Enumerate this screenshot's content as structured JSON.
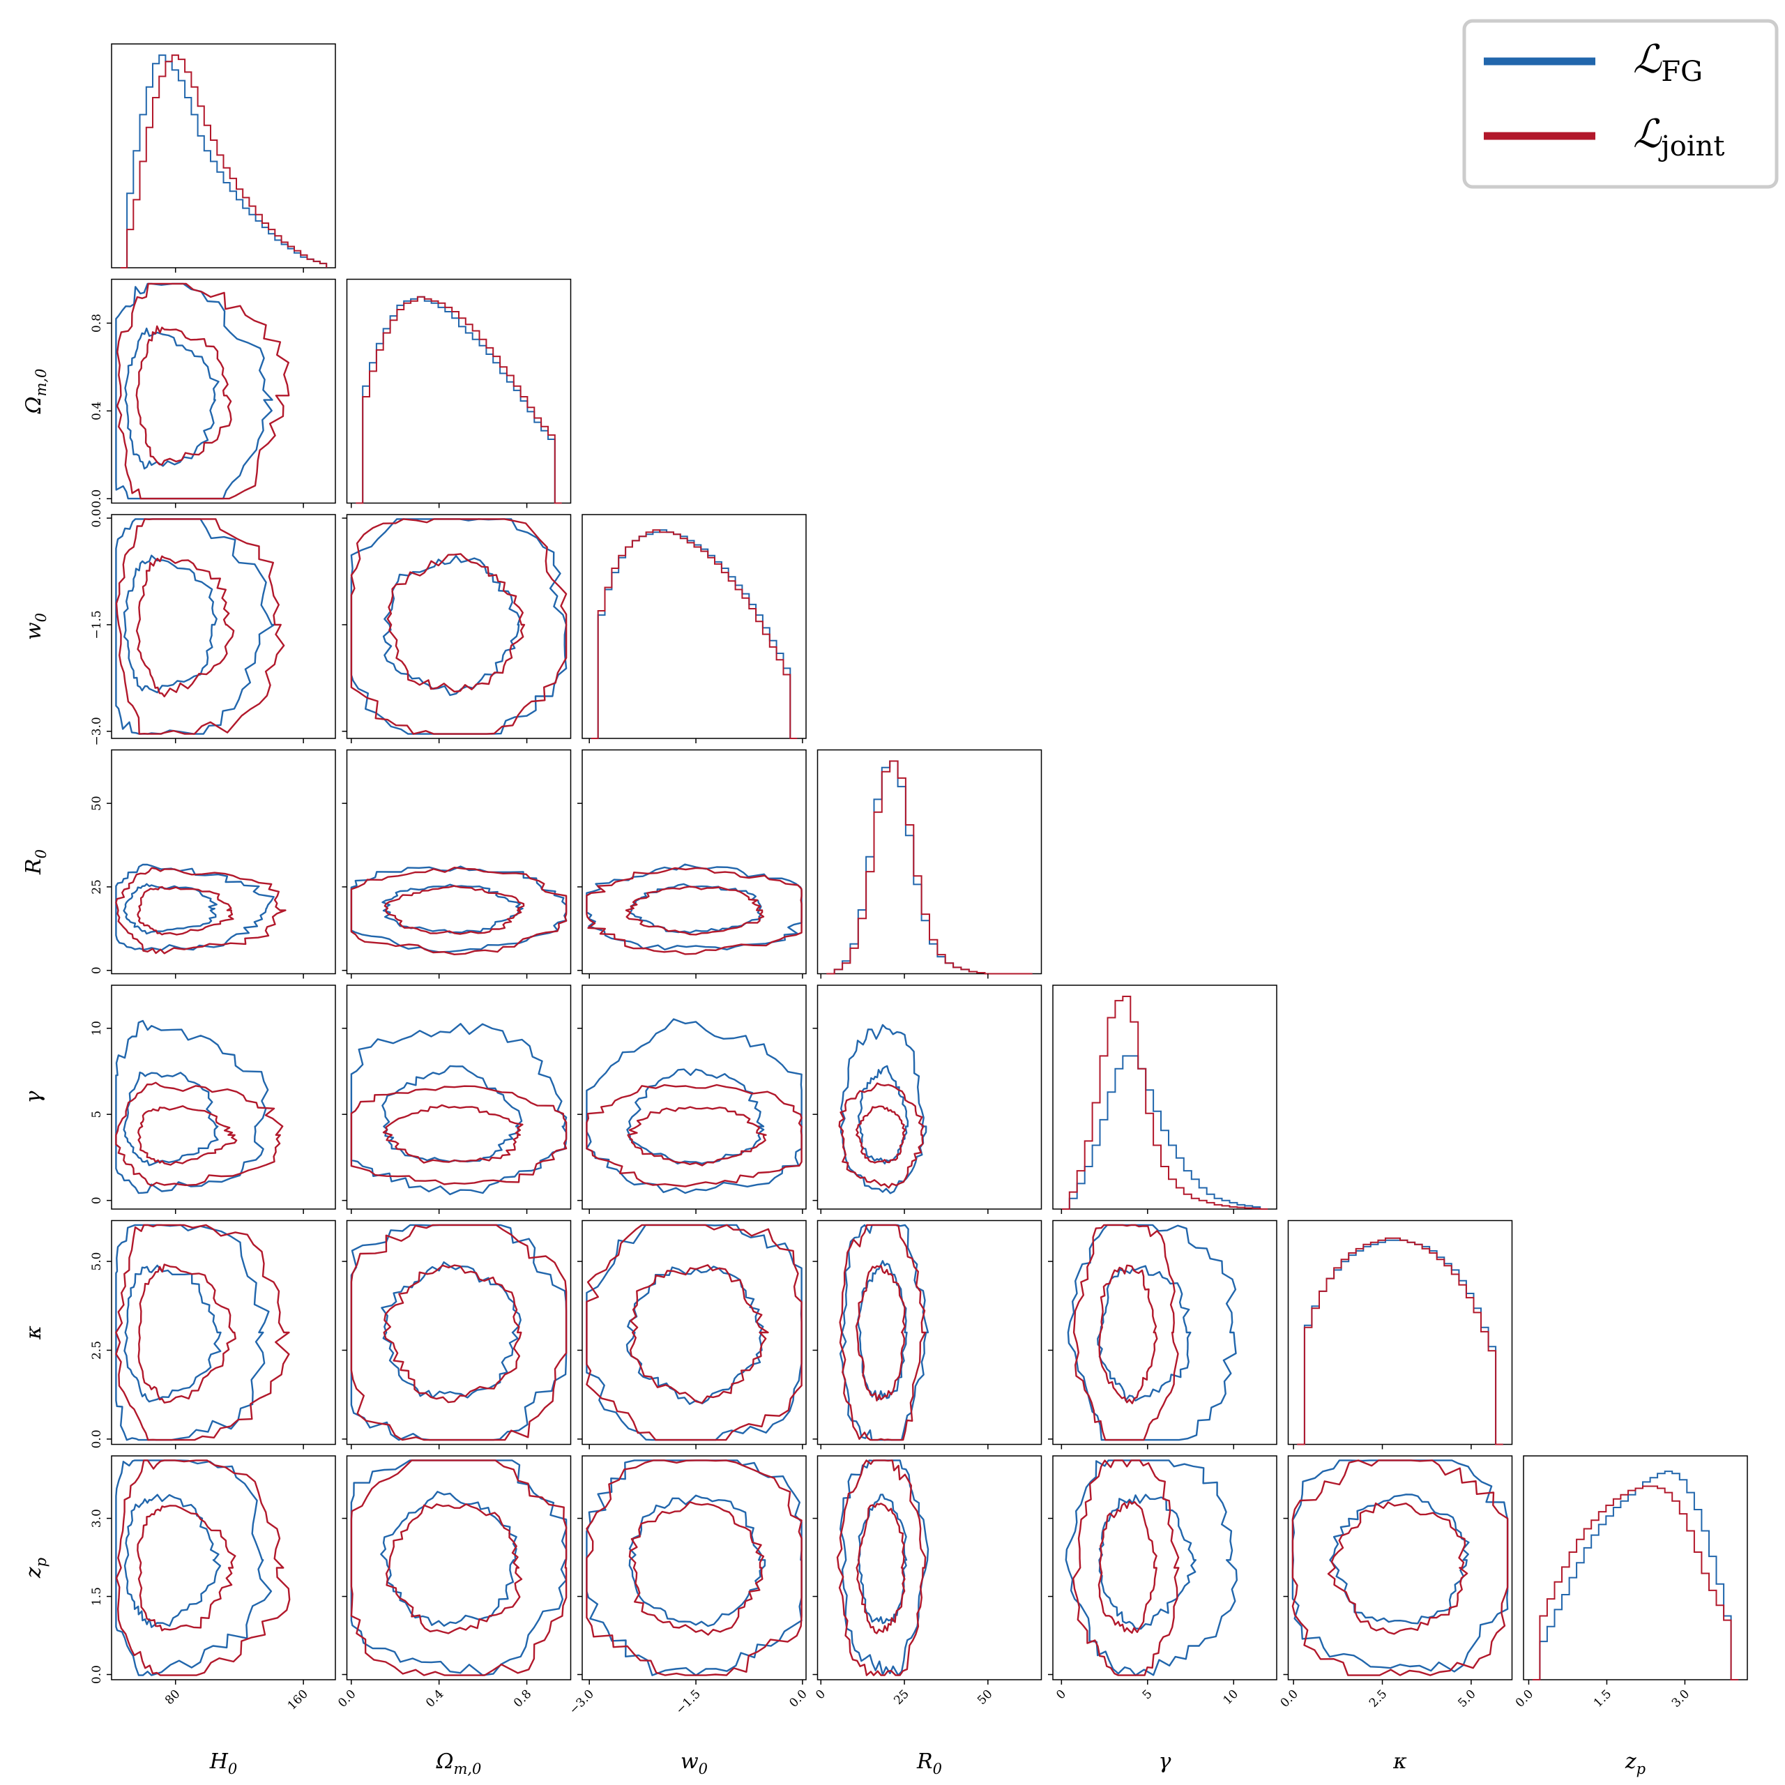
{
  "chart_data": {
    "type": "corner",
    "parameters": [
      {
        "key": "H0",
        "label": "H",
        "sub": "0",
        "range": [
          40,
          180
        ],
        "ticks": [
          80,
          160
        ],
        "tick_labels": [
          "80",
          "160"
        ]
      },
      {
        "key": "Om0",
        "label": "Ω",
        "sub": "m,0",
        "range": [
          -0.02,
          1.0
        ],
        "ticks": [
          0.0,
          0.4,
          0.8
        ],
        "tick_labels": [
          "0.0",
          "0.4",
          "0.8"
        ]
      },
      {
        "key": "w0",
        "label": "w",
        "sub": "0",
        "range": [
          -3.1,
          0.05
        ],
        "ticks": [
          -3.0,
          -1.5,
          0.0
        ],
        "tick_labels": [
          "−3.0",
          "−1.5",
          "0.0"
        ]
      },
      {
        "key": "R0",
        "label": "R",
        "sub": "0",
        "range": [
          -1,
          66
        ],
        "ticks": [
          0,
          25,
          50
        ],
        "tick_labels": [
          "0",
          "25",
          "50"
        ]
      },
      {
        "key": "gamma",
        "label": "γ",
        "sub": "",
        "range": [
          -0.5,
          12.5
        ],
        "ticks": [
          0,
          5,
          10
        ],
        "tick_labels": [
          "0",
          "5",
          "10"
        ]
      },
      {
        "key": "kappa",
        "label": "κ",
        "sub": "",
        "range": [
          -0.15,
          6.15
        ],
        "ticks": [
          0.0,
          2.5,
          5.0
        ],
        "tick_labels": [
          "0.0",
          "2.5",
          "5.0"
        ]
      },
      {
        "key": "zp",
        "label": "z",
        "sub": "p",
        "range": [
          -0.1,
          4.2
        ],
        "ticks": [
          0.0,
          1.5,
          3.0
        ],
        "tick_labels": [
          "0.0",
          "1.5",
          "3.0"
        ]
      }
    ],
    "series": [
      {
        "name": "ℒ",
        "subscript": "FG",
        "color": "#2166ac",
        "stats": {
          "H0": {
            "mean": 65,
            "sd_lo": 14,
            "sd_hi": 35
          },
          "Om0": {
            "mean": 0.45,
            "sd": 0.26
          },
          "w0": {
            "mean": -1.5,
            "sd": 0.8
          },
          "R0": {
            "mean": 18.5,
            "sd": 6
          },
          "gamma": {
            "mean": 4.3,
            "sd_lo": 1.8,
            "sd_hi": 2.8
          },
          "kappa": {
            "mean": 3.0,
            "sd": 1.6
          },
          "zp": {
            "mean": 2.2,
            "sd": 1.05
          }
        },
        "hist": {
          "H0": [
            0.0,
            0.35,
            0.55,
            0.72,
            0.85,
            0.96,
            1.0,
            0.97,
            0.93,
            0.88,
            0.8,
            0.72,
            0.62,
            0.55,
            0.5,
            0.45,
            0.4,
            0.36,
            0.32,
            0.28,
            0.25,
            0.22,
            0.19,
            0.16,
            0.13,
            0.11,
            0.09,
            0.07,
            0.05,
            0.04,
            0.03,
            0.02
          ],
          "Om0": [
            0.0,
            0.55,
            0.66,
            0.75,
            0.82,
            0.88,
            0.93,
            0.95,
            0.96,
            0.97,
            0.95,
            0.94,
            0.92,
            0.9,
            0.87,
            0.83,
            0.8,
            0.77,
            0.74,
            0.7,
            0.66,
            0.61,
            0.57,
            0.53,
            0.48,
            0.43,
            0.38,
            0.34,
            0.3,
            0.0
          ],
          "w0": [
            0.0,
            0.58,
            0.7,
            0.78,
            0.85,
            0.9,
            0.93,
            0.95,
            0.96,
            0.97,
            0.98,
            0.97,
            0.96,
            0.95,
            0.93,
            0.91,
            0.89,
            0.86,
            0.83,
            0.8,
            0.76,
            0.72,
            0.68,
            0.63,
            0.58,
            0.52,
            0.46,
            0.4,
            0.33,
            0.0
          ],
          "R0": [
            0.0,
            0.02,
            0.06,
            0.14,
            0.3,
            0.55,
            0.82,
            0.97,
            1.0,
            0.88,
            0.65,
            0.42,
            0.25,
            0.14,
            0.08,
            0.05,
            0.03,
            0.02,
            0.01,
            0.005,
            0.0,
            0.0,
            0.0,
            0.0,
            0.0,
            0.0
          ],
          "gamma": [
            0.0,
            0.05,
            0.12,
            0.2,
            0.3,
            0.42,
            0.55,
            0.66,
            0.72,
            0.72,
            0.66,
            0.56,
            0.46,
            0.37,
            0.3,
            0.24,
            0.18,
            0.14,
            0.1,
            0.07,
            0.05,
            0.04,
            0.03,
            0.02,
            0.015,
            0.01,
            0.0
          ],
          "kappa": [
            0.0,
            0.56,
            0.65,
            0.72,
            0.78,
            0.82,
            0.86,
            0.89,
            0.91,
            0.93,
            0.94,
            0.95,
            0.96,
            0.96,
            0.96,
            0.95,
            0.94,
            0.93,
            0.91,
            0.88,
            0.85,
            0.82,
            0.77,
            0.71,
            0.64,
            0.55,
            0.46,
            0.0
          ],
          "zp": [
            0.0,
            0.18,
            0.25,
            0.33,
            0.4,
            0.48,
            0.55,
            0.62,
            0.68,
            0.73,
            0.77,
            0.81,
            0.84,
            0.87,
            0.9,
            0.93,
            0.95,
            0.97,
            0.98,
            0.97,
            0.94,
            0.88,
            0.8,
            0.7,
            0.58,
            0.45,
            0.3,
            0.0
          ]
        }
      },
      {
        "name": "ℒ",
        "subscript": "joint",
        "color": "#b2182b",
        "stats": {
          "H0": {
            "mean": 73,
            "sd_lo": 14,
            "sd_hi": 36
          },
          "Om0": {
            "mean": 0.47,
            "sd": 0.26
          },
          "w0": {
            "mean": -1.5,
            "sd": 0.8
          },
          "R0": {
            "mean": 18.0,
            "sd": 6
          },
          "gamma": {
            "mean": 3.8,
            "sd_lo": 1.4,
            "sd_hi": 1.4
          },
          "kappa": {
            "mean": 3.0,
            "sd": 1.6
          },
          "zp": {
            "mean": 2.05,
            "sd": 1.05
          }
        },
        "hist": {
          "H0": [
            0.0,
            0.18,
            0.32,
            0.5,
            0.66,
            0.8,
            0.9,
            0.97,
            1.0,
            0.98,
            0.92,
            0.85,
            0.76,
            0.67,
            0.6,
            0.53,
            0.47,
            0.42,
            0.37,
            0.33,
            0.29,
            0.25,
            0.21,
            0.18,
            0.15,
            0.12,
            0.1,
            0.08,
            0.06,
            0.04,
            0.03,
            0.02
          ],
          "Om0": [
            0.0,
            0.5,
            0.62,
            0.72,
            0.8,
            0.86,
            0.91,
            0.94,
            0.95,
            0.97,
            0.96,
            0.95,
            0.94,
            0.92,
            0.9,
            0.87,
            0.84,
            0.81,
            0.77,
            0.73,
            0.69,
            0.64,
            0.6,
            0.55,
            0.5,
            0.45,
            0.4,
            0.36,
            0.32,
            0.0
          ],
          "w0": [
            0.0,
            0.6,
            0.71,
            0.8,
            0.86,
            0.9,
            0.93,
            0.95,
            0.97,
            0.98,
            0.97,
            0.97,
            0.96,
            0.94,
            0.92,
            0.9,
            0.88,
            0.85,
            0.82,
            0.78,
            0.74,
            0.7,
            0.66,
            0.61,
            0.55,
            0.49,
            0.43,
            0.37,
            0.3,
            0.0
          ],
          "R0": [
            0.0,
            0.02,
            0.05,
            0.12,
            0.26,
            0.48,
            0.76,
            0.95,
            1.0,
            0.92,
            0.7,
            0.46,
            0.28,
            0.16,
            0.09,
            0.05,
            0.03,
            0.02,
            0.01,
            0.005,
            0.0,
            0.0,
            0.0,
            0.0,
            0.0,
            0.0
          ],
          "gamma": [
            0.0,
            0.08,
            0.18,
            0.32,
            0.5,
            0.72,
            0.9,
            0.98,
            1.0,
            0.88,
            0.66,
            0.45,
            0.3,
            0.2,
            0.14,
            0.1,
            0.07,
            0.05,
            0.04,
            0.03,
            0.02,
            0.015,
            0.01,
            0.008,
            0.005,
            0.003,
            0.0
          ],
          "kappa": [
            0.0,
            0.55,
            0.64,
            0.72,
            0.78,
            0.83,
            0.87,
            0.9,
            0.92,
            0.94,
            0.95,
            0.96,
            0.97,
            0.97,
            0.96,
            0.95,
            0.94,
            0.92,
            0.9,
            0.87,
            0.84,
            0.8,
            0.75,
            0.69,
            0.62,
            0.53,
            0.44,
            0.0
          ],
          "zp": [
            0.0,
            0.3,
            0.38,
            0.46,
            0.53,
            0.6,
            0.66,
            0.71,
            0.75,
            0.79,
            0.82,
            0.85,
            0.87,
            0.89,
            0.9,
            0.91,
            0.91,
            0.9,
            0.88,
            0.84,
            0.78,
            0.7,
            0.6,
            0.5,
            0.42,
            0.35,
            0.28,
            0.0
          ]
        }
      }
    ],
    "legend_position": "top-right",
    "grid": false
  }
}
